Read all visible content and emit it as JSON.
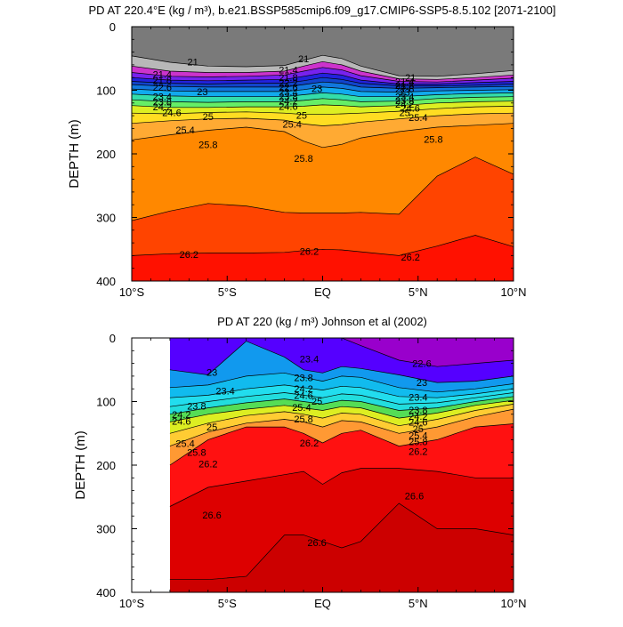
{
  "chart_data": [
    {
      "type": "contour",
      "title": "PD AT 220.4°E (kg / m³), b.e21.BSSP585cmip6.f09_g17.CMIP6-SSP5-8.5.102 [2071-2100]",
      "ylabel": "DEPTH (m)",
      "xlabel": "",
      "xlim": [
        -10,
        10
      ],
      "ylim": [
        400,
        0
      ],
      "x_ticks": [
        -10,
        -5,
        0,
        5,
        10
      ],
      "x_tick_labels": [
        "10°S",
        "5°S",
        "EQ",
        "5°N",
        "10°N"
      ],
      "y_ticks": [
        0,
        100,
        200,
        300,
        400
      ],
      "y_tick_labels": [
        "0",
        "100",
        "200",
        "300",
        "400"
      ],
      "x_nodes": [
        -10,
        -8,
        -6,
        -4,
        -2,
        -1,
        0,
        1,
        2,
        4,
        6,
        8,
        10
      ],
      "isopycnals": [
        {
          "level": 21.0,
          "depth": [
            46,
            56,
            62,
            63,
            61,
            53,
            45,
            50,
            62,
            77,
            78,
            74,
            69
          ]
        },
        {
          "level": 21.4,
          "depth": [
            62,
            70,
            72,
            72,
            70,
            62,
            55,
            60,
            70,
            82,
            83,
            80,
            76
          ]
        },
        {
          "level": 21.8,
          "depth": [
            72,
            78,
            79,
            78,
            76,
            70,
            64,
            68,
            77,
            86,
            87,
            84,
            81
          ]
        },
        {
          "level": 22.2,
          "depth": [
            80,
            84,
            85,
            84,
            83,
            78,
            73,
            76,
            84,
            90,
            90,
            88,
            86
          ]
        },
        {
          "level": 22.6,
          "depth": [
            86,
            89,
            90,
            89,
            89,
            85,
            80,
            83,
            89,
            93,
            93,
            92,
            90
          ]
        },
        {
          "level": 23.0,
          "depth": [
            91,
            94,
            95,
            95,
            95,
            91,
            87,
            89,
            95,
            97,
            96,
            95,
            94
          ]
        },
        {
          "level": 23.4,
          "depth": [
            98,
            101,
            102,
            102,
            102,
            99,
            95,
            97,
            102,
            103,
            101,
            100,
            99
          ]
        },
        {
          "level": 23.8,
          "depth": [
            106,
            109,
            110,
            110,
            110,
            107,
            104,
            106,
            110,
            110,
            107,
            105,
            104
          ]
        },
        {
          "level": 24.2,
          "depth": [
            115,
            118,
            119,
            118,
            118,
            116,
            113,
            115,
            118,
            117,
            113,
            111,
            110
          ]
        },
        {
          "level": 24.6,
          "depth": [
            124,
            127,
            127,
            126,
            126,
            125,
            123,
            124,
            126,
            124,
            120,
            118,
            117
          ]
        },
        {
          "level": 25.0,
          "depth": [
            136,
            137,
            135,
            134,
            136,
            138,
            138,
            137,
            136,
            133,
            129,
            126,
            125
          ]
        },
        {
          "level": 25.4,
          "depth": [
            152,
            148,
            145,
            144,
            147,
            153,
            156,
            154,
            150,
            145,
            140,
            137,
            136
          ]
        },
        {
          "level": 25.8,
          "depth": [
            178,
            170,
            163,
            158,
            165,
            180,
            190,
            185,
            175,
            165,
            158,
            155,
            152
          ]
        },
        {
          "level": 26.0,
          "depth": [
            305,
            290,
            278,
            282,
            292,
            293,
            293,
            293,
            292,
            295,
            235,
            205,
            232
          ]
        },
        {
          "level": 26.2,
          "depth": [
            360,
            357,
            356,
            356,
            355,
            352,
            350,
            351,
            354,
            360,
            345,
            328,
            346
          ]
        }
      ],
      "contour_labels": [
        {
          "text": "21",
          "x": -6.8,
          "y": 55
        },
        {
          "text": "21.4",
          "x": -8.4,
          "y": 75
        },
        {
          "text": "21.8",
          "x": -8.4,
          "y": 84
        },
        {
          "text": "22.6",
          "x": -8.4,
          "y": 95
        },
        {
          "text": "23",
          "x": -6.3,
          "y": 102
        },
        {
          "text": "23.4",
          "x": -8.4,
          "y": 110
        },
        {
          "text": "23.8",
          "x": -8.4,
          "y": 118
        },
        {
          "text": "24.2",
          "x": -8.4,
          "y": 126
        },
        {
          "text": "24.6",
          "x": -7.9,
          "y": 135
        },
        {
          "text": "25",
          "x": -6.0,
          "y": 141
        },
        {
          "text": "25.4",
          "x": -7.2,
          "y": 162
        },
        {
          "text": "25.8",
          "x": -6.0,
          "y": 185
        },
        {
          "text": "21",
          "x": -1.0,
          "y": 50
        },
        {
          "text": "21.4",
          "x": -1.8,
          "y": 68
        },
        {
          "text": "21.8",
          "x": -1.8,
          "y": 80
        },
        {
          "text": "22.2",
          "x": -1.8,
          "y": 88
        },
        {
          "text": "22.6",
          "x": -1.8,
          "y": 95
        },
        {
          "text": "23",
          "x": -0.3,
          "y": 97
        },
        {
          "text": "23.4",
          "x": -1.8,
          "y": 103
        },
        {
          "text": "23.8",
          "x": -1.8,
          "y": 110
        },
        {
          "text": "24.2",
          "x": -1.8,
          "y": 117
        },
        {
          "text": "24.6",
          "x": -1.8,
          "y": 125
        },
        {
          "text": "25",
          "x": -1.1,
          "y": 139
        },
        {
          "text": "25.4",
          "x": -1.6,
          "y": 153
        },
        {
          "text": "25.8",
          "x": -1.0,
          "y": 207
        },
        {
          "text": "21",
          "x": 4.6,
          "y": 80
        },
        {
          "text": "21.4",
          "x": 4.3,
          "y": 86
        },
        {
          "text": "21.8",
          "x": 4.3,
          "y": 92
        },
        {
          "text": "22.6",
          "x": 4.3,
          "y": 98
        },
        {
          "text": "23",
          "x": 4.3,
          "y": 103
        },
        {
          "text": "23.4",
          "x": 4.3,
          "y": 110
        },
        {
          "text": "23.8",
          "x": 4.3,
          "y": 116
        },
        {
          "text": "24.2",
          "x": 4.3,
          "y": 122
        },
        {
          "text": "24.6",
          "x": 4.6,
          "y": 128
        },
        {
          "text": "25",
          "x": 4.3,
          "y": 135
        },
        {
          "text": "25.4",
          "x": 5.0,
          "y": 143
        },
        {
          "text": "25.8",
          "x": 5.8,
          "y": 177
        },
        {
          "text": "26.2",
          "x": -7.0,
          "y": 358
        },
        {
          "text": "26.2",
          "x": -0.7,
          "y": 353
        },
        {
          "text": "26.2",
          "x": 4.6,
          "y": 362
        }
      ],
      "color_scale": [
        "#7a7a7a",
        "#b8b8b8",
        "#cc33cc",
        "#aa22ee",
        "#7722ee",
        "#2222dd",
        "#1144cc",
        "#1177dd",
        "#11aaee",
        "#22cccc",
        "#33ddaa",
        "#66ee66",
        "#ddee22",
        "#ffdd22",
        "#ffaa33",
        "#ff9922",
        "#ff8800",
        "#ff4400",
        "#ff1100"
      ]
    },
    {
      "type": "contour",
      "title": "PD AT 220 (kg / m³) Johnson et al (2002)",
      "ylabel": "DEPTH (m)",
      "xlabel": "",
      "xlim": [
        -10,
        10
      ],
      "ylim": [
        400,
        0
      ],
      "data_xlim": [
        -8,
        10
      ],
      "x_ticks": [
        -10,
        -5,
        0,
        5,
        10
      ],
      "x_tick_labels": [
        "10°S",
        "5°S",
        "EQ",
        "5°N",
        "10°N"
      ],
      "y_ticks": [
        0,
        100,
        200,
        300,
        400
      ],
      "y_tick_labels": [
        "0",
        "100",
        "200",
        "300",
        "400"
      ],
      "x_nodes": [
        -8,
        -6,
        -4,
        -2,
        -1,
        0,
        1,
        2,
        4,
        6,
        8,
        10
      ],
      "isopycnals": [
        {
          "level": 22.6,
          "depth": [
            0,
            0,
            0,
            0,
            0,
            0,
            0,
            12,
            35,
            45,
            40,
            35
          ]
        },
        {
          "level": 23.0,
          "depth": [
            50,
            58,
            5,
            30,
            50,
            55,
            45,
            48,
            58,
            70,
            68,
            60
          ]
        },
        {
          "level": 23.4,
          "depth": [
            78,
            74,
            60,
            55,
            62,
            68,
            60,
            62,
            78,
            85,
            80,
            72
          ]
        },
        {
          "level": 23.8,
          "depth": [
            94,
            90,
            80,
            74,
            78,
            82,
            76,
            78,
            92,
            94,
            88,
            80
          ]
        },
        {
          "level": 24.2,
          "depth": [
            108,
            100,
            92,
            86,
            90,
            94,
            88,
            90,
            104,
            102,
            94,
            86
          ]
        },
        {
          "level": 24.6,
          "depth": [
            120,
            110,
            102,
            96,
            100,
            104,
            98,
            100,
            114,
            110,
            100,
            92
          ]
        },
        {
          "level": 25.0,
          "depth": [
            132,
            120,
            112,
            106,
            110,
            114,
            108,
            110,
            126,
            118,
            106,
            98
          ]
        },
        {
          "level": 25.4,
          "depth": [
            150,
            134,
            122,
            116,
            120,
            126,
            118,
            120,
            138,
            128,
            114,
            104
          ]
        },
        {
          "level": 25.8,
          "depth": [
            170,
            148,
            134,
            128,
            132,
            140,
            130,
            132,
            150,
            140,
            124,
            112
          ]
        },
        {
          "level": 26.2,
          "depth": [
            200,
            160,
            140,
            140,
            150,
            165,
            150,
            145,
            170,
            160,
            140,
            135
          ]
        },
        {
          "level": 26.6,
          "depth": [
            265,
            235,
            225,
            215,
            210,
            230,
            212,
            205,
            205,
            210,
            220,
            220
          ]
        },
        {
          "level": 26.8,
          "depth": [
            380,
            380,
            375,
            310,
            310,
            320,
            330,
            320,
            260,
            300,
            300,
            310
          ]
        }
      ],
      "contour_labels": [
        {
          "text": "23",
          "x": -5.8,
          "y": 54
        },
        {
          "text": "23.4",
          "x": -5.1,
          "y": 83
        },
        {
          "text": "23.8",
          "x": -6.6,
          "y": 107
        },
        {
          "text": "24.2",
          "x": -7.4,
          "y": 120
        },
        {
          "text": "24.6",
          "x": -7.4,
          "y": 131
        },
        {
          "text": "25",
          "x": -5.8,
          "y": 140
        },
        {
          "text": "25.4",
          "x": -7.2,
          "y": 166
        },
        {
          "text": "25.8",
          "x": -6.6,
          "y": 180
        },
        {
          "text": "26.2",
          "x": -6.0,
          "y": 198
        },
        {
          "text": "23.4",
          "x": -0.7,
          "y": 33
        },
        {
          "text": "23.8",
          "x": -1.0,
          "y": 62
        },
        {
          "text": "24.2",
          "x": -1.0,
          "y": 80
        },
        {
          "text": "24.6",
          "x": -1.0,
          "y": 90
        },
        {
          "text": "25",
          "x": -0.3,
          "y": 99
        },
        {
          "text": "25.4",
          "x": -1.1,
          "y": 109
        },
        {
          "text": "25.8",
          "x": -1.0,
          "y": 127
        },
        {
          "text": "26.2",
          "x": -0.7,
          "y": 165
        },
        {
          "text": "22.6",
          "x": 5.2,
          "y": 40
        },
        {
          "text": "23",
          "x": 5.2,
          "y": 70
        },
        {
          "text": "23.4",
          "x": 5.0,
          "y": 93
        },
        {
          "text": "23.8",
          "x": 5.0,
          "y": 113
        },
        {
          "text": "24.2",
          "x": 5.0,
          "y": 123
        },
        {
          "text": "24.6",
          "x": 5.0,
          "y": 132
        },
        {
          "text": "25",
          "x": 5.0,
          "y": 143
        },
        {
          "text": "25.4",
          "x": 5.0,
          "y": 153
        },
        {
          "text": "25.8",
          "x": 5.0,
          "y": 163
        },
        {
          "text": "26.2",
          "x": 5.0,
          "y": 178
        },
        {
          "text": "26.6",
          "x": -5.8,
          "y": 278
        },
        {
          "text": "26.6",
          "x": -0.3,
          "y": 322
        },
        {
          "text": "26.6",
          "x": 4.8,
          "y": 248
        }
      ],
      "color_scale": [
        "#9900cc",
        "#5500ff",
        "#2255ff",
        "#1199ee",
        "#11bbee",
        "#22ddee",
        "#22dddd",
        "#22ccaa",
        "#55dd55",
        "#ddee22",
        "#ffcc33",
        "#ff9933",
        "#ff5522",
        "#ff1111",
        "#dd0000",
        "#cc0000"
      ]
    }
  ]
}
